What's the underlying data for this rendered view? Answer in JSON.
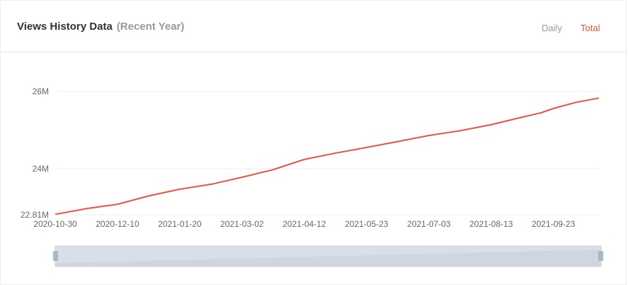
{
  "header": {
    "title": "Views History Data",
    "subtitle": "(Recent Year)",
    "tabs": [
      {
        "label": "Daily",
        "active": false
      },
      {
        "label": "Total",
        "active": true
      }
    ]
  },
  "colors": {
    "line": "#e8543f",
    "grid": "#eeeeee",
    "zoom_fill": "#d9dfe8"
  },
  "chart_data": {
    "type": "line",
    "ylim": [
      22.81,
      26.3
    ],
    "y_ticks": [
      {
        "value": 22.81,
        "label": "22.81M"
      },
      {
        "value": 24,
        "label": "24M"
      },
      {
        "value": 26,
        "label": "26M"
      }
    ],
    "x_ticks": [
      "2020-10-30",
      "2020-12-10",
      "2021-01-20",
      "2021-03-02",
      "2021-04-12",
      "2021-05-23",
      "2021-07-03",
      "2021-08-13",
      "2021-09-23"
    ],
    "x_range": [
      "2020-10-30",
      "2021-10-23"
    ],
    "grid": true,
    "series": [
      {
        "unit": "M",
        "points": [
          [
            "2020-10-30",
            22.82
          ],
          [
            "2020-11-20",
            22.97
          ],
          [
            "2020-12-10",
            23.08
          ],
          [
            "2020-12-31",
            23.3
          ],
          [
            "2021-01-20",
            23.47
          ],
          [
            "2021-02-10",
            23.6
          ],
          [
            "2021-03-02",
            23.78
          ],
          [
            "2021-03-22",
            23.97
          ],
          [
            "2021-04-12",
            24.24
          ],
          [
            "2021-05-02",
            24.4
          ],
          [
            "2021-05-23",
            24.55
          ],
          [
            "2021-06-12",
            24.7
          ],
          [
            "2021-07-03",
            24.86
          ],
          [
            "2021-07-23",
            24.98
          ],
          [
            "2021-08-13",
            25.14
          ],
          [
            "2021-09-02",
            25.33
          ],
          [
            "2021-09-15",
            25.45
          ],
          [
            "2021-09-23",
            25.56
          ],
          [
            "2021-10-08",
            25.72
          ],
          [
            "2021-10-23",
            25.83
          ]
        ]
      }
    ]
  }
}
